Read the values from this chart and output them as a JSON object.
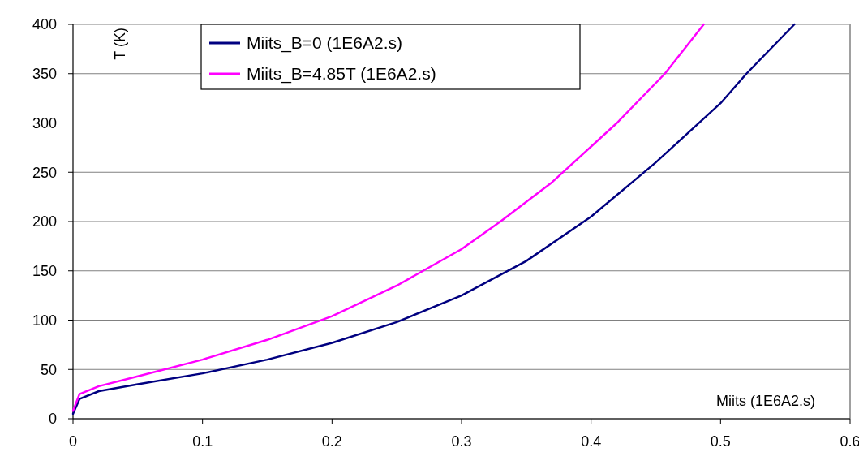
{
  "chart_data": {
    "type": "line",
    "xlabel": "Miits (1E6A2.s)",
    "ylabel": "T (K)",
    "xlim": [
      0,
      0.6
    ],
    "xticks": [
      0,
      0.1,
      0.2,
      0.3,
      0.4,
      0.5,
      0.6
    ],
    "ylim": [
      0,
      400
    ],
    "yticks": [
      0,
      50,
      100,
      150,
      200,
      250,
      300,
      350,
      400
    ],
    "grid": "y",
    "legend": "top",
    "marker": "none",
    "line_style": "solid",
    "series": [
      {
        "name": "Miits_B=0 (1E6A2.s)",
        "color": "#000080",
        "x": [
          0,
          0.005,
          0.02,
          0.05,
          0.1,
          0.15,
          0.2,
          0.25,
          0.3,
          0.35,
          0.4,
          0.45,
          0.5,
          0.52,
          0.557
        ],
        "values": [
          5,
          20,
          28,
          35,
          46,
          60,
          77,
          98,
          125,
          160,
          205,
          260,
          320,
          350,
          400
        ]
      },
      {
        "name": "Miits_B=4.85T (1E6A2.s)",
        "color": "#ff00ff",
        "x": [
          0,
          0.005,
          0.02,
          0.05,
          0.1,
          0.15,
          0.2,
          0.25,
          0.3,
          0.33,
          0.37,
          0.42,
          0.457,
          0.487
        ],
        "values": [
          8,
          25,
          33,
          43,
          60,
          80,
          104,
          135,
          172,
          200,
          240,
          300,
          350,
          400
        ]
      }
    ]
  }
}
